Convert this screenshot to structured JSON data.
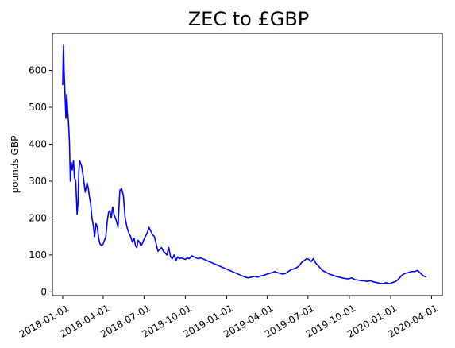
{
  "chart_data": {
    "type": "line",
    "title": "ZEC to £GBP",
    "xlabel": "",
    "ylabel": "pounds GBP",
    "grid": false,
    "color": "#0000ff",
    "xlim": [
      "2017-12-09",
      "2020-04-25"
    ],
    "ylim": [
      -10,
      700
    ],
    "x_ticks": [
      "2018-01-01",
      "2018-04-01",
      "2018-07-01",
      "2018-10-01",
      "2019-01-01",
      "2019-04-01",
      "2019-07-01",
      "2019-10-01",
      "2020-01-01",
      "2020-04-01"
    ],
    "y_ticks": [
      0,
      100,
      200,
      300,
      400,
      500,
      600
    ],
    "series": [
      {
        "x": [
          "2018-01-01",
          "2018-01-02",
          "2018-01-03",
          "2018-01-04",
          "2018-01-06",
          "2018-01-08",
          "2018-01-10",
          "2018-01-12",
          "2018-01-14",
          "2018-01-16",
          "2018-01-18",
          "2018-01-20",
          "2018-01-22",
          "2018-01-25",
          "2018-01-27",
          "2018-01-30",
          "2018-02-02",
          "2018-02-04",
          "2018-02-06",
          "2018-02-08",
          "2018-02-12",
          "2018-02-16",
          "2018-02-20",
          "2018-02-24",
          "2018-02-27",
          "2018-03-01",
          "2018-03-04",
          "2018-03-07",
          "2018-03-10",
          "2018-03-13",
          "2018-03-16",
          "2018-03-19",
          "2018-03-22",
          "2018-03-25",
          "2018-03-29",
          "2018-04-01",
          "2018-04-04",
          "2018-04-07",
          "2018-04-10",
          "2018-04-13",
          "2018-04-16",
          "2018-04-19",
          "2018-04-22",
          "2018-04-25",
          "2018-04-28",
          "2018-05-01",
          "2018-05-04",
          "2018-05-08",
          "2018-05-12",
          "2018-05-16",
          "2018-05-20",
          "2018-05-24",
          "2018-05-28",
          "2018-06-01",
          "2018-06-05",
          "2018-06-09",
          "2018-06-12",
          "2018-06-15",
          "2018-06-18",
          "2018-06-21",
          "2018-06-24",
          "2018-06-27",
          "2018-06-30",
          "2018-07-04",
          "2018-07-08",
          "2018-07-12",
          "2018-07-16",
          "2018-07-20",
          "2018-07-24",
          "2018-07-28",
          "2018-08-01",
          "2018-08-05",
          "2018-08-09",
          "2018-08-13",
          "2018-08-17",
          "2018-08-21",
          "2018-08-25",
          "2018-08-29",
          "2018-09-02",
          "2018-09-06",
          "2018-09-10",
          "2018-09-14",
          "2018-09-18",
          "2018-09-22",
          "2018-09-26",
          "2018-10-01",
          "2018-10-05",
          "2018-10-10",
          "2018-10-15",
          "2018-10-20",
          "2018-10-25",
          "2018-10-30",
          "2018-11-04",
          "2019-02-11",
          "2019-02-18",
          "2019-02-25",
          "2019-03-04",
          "2019-03-11",
          "2019-03-18",
          "2019-03-25",
          "2019-04-01",
          "2019-04-06",
          "2019-04-12",
          "2019-04-18",
          "2019-04-24",
          "2019-04-30",
          "2019-05-06",
          "2019-05-12",
          "2019-05-18",
          "2019-05-24",
          "2019-05-30",
          "2019-06-05",
          "2019-06-11",
          "2019-06-17",
          "2019-06-23",
          "2019-06-28",
          "2019-07-03",
          "2019-07-08",
          "2019-07-13",
          "2019-07-18",
          "2019-07-23",
          "2019-07-28",
          "2019-08-02",
          "2019-08-07",
          "2019-08-12",
          "2019-08-18",
          "2019-08-25",
          "2019-09-01",
          "2019-09-08",
          "2019-09-15",
          "2019-09-22",
          "2019-09-29",
          "2019-10-06",
          "2019-10-13",
          "2019-10-20",
          "2019-10-27",
          "2019-11-03",
          "2019-11-10",
          "2019-11-17",
          "2019-11-24",
          "2019-12-01",
          "2019-12-08",
          "2019-12-15",
          "2019-12-22",
          "2019-12-29",
          "2020-01-05",
          "2020-01-12",
          "2020-01-19",
          "2020-01-26",
          "2020-02-02",
          "2020-02-09",
          "2020-02-16",
          "2020-02-23",
          "2020-03-01",
          "2020-03-08",
          "2020-03-12",
          "2020-03-16",
          "2020-03-20"
        ],
        "y": [
          560,
          640,
          668,
          600,
          540,
          470,
          535,
          490,
          455,
          405,
          300,
          350,
          330,
          355,
          310,
          300,
          210,
          240,
          330,
          355,
          340,
          310,
          270,
          295,
          280,
          260,
          240,
          200,
          180,
          150,
          185,
          175,
          145,
          130,
          125,
          130,
          140,
          150,
          190,
          215,
          220,
          200,
          230,
          210,
          200,
          190,
          175,
          275,
          280,
          260,
          200,
          175,
          160,
          150,
          135,
          145,
          125,
          120,
          140,
          135,
          125,
          130,
          140,
          150,
          160,
          175,
          165,
          155,
          150,
          130,
          110,
          115,
          120,
          110,
          105,
          100,
          120,
          95,
          90,
          100,
          85,
          95,
          90,
          92,
          90,
          88,
          92,
          90,
          98,
          95,
          92,
          90,
          92,
          40,
          38,
          40,
          42,
          40,
          43,
          45,
          48,
          50,
          52,
          55,
          52,
          50,
          48,
          50,
          55,
          60,
          62,
          65,
          70,
          80,
          85,
          90,
          88,
          82,
          90,
          78,
          72,
          65,
          58,
          55,
          52,
          48,
          45,
          42,
          40,
          38,
          36,
          35,
          38,
          33,
          32,
          30,
          30,
          28,
          30,
          27,
          25,
          23,
          22,
          25,
          22,
          25,
          28,
          35,
          45,
          50,
          52,
          55,
          55,
          58,
          50,
          45,
          42,
          40
        ]
      }
    ]
  }
}
